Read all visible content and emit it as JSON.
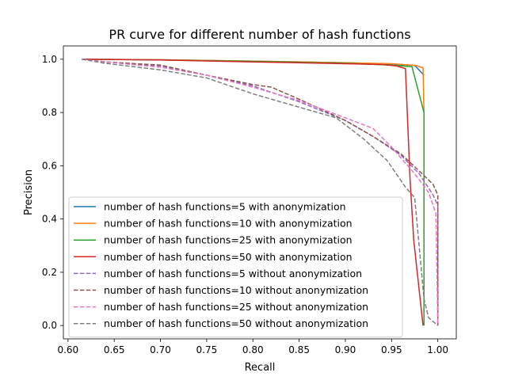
{
  "chart_data": {
    "type": "line",
    "title": "PR curve for different number of hash functions",
    "xlabel": "Recall",
    "ylabel": "Precision",
    "xlim": [
      0.595,
      1.02
    ],
    "ylim": [
      -0.05,
      1.05
    ],
    "xticks": [
      "0.60",
      "0.65",
      "0.70",
      "0.75",
      "0.80",
      "0.85",
      "0.90",
      "0.95",
      "1.00"
    ],
    "yticks": [
      "0.0",
      "0.2",
      "0.4",
      "0.6",
      "0.8",
      "1.0"
    ],
    "grid": false,
    "legend_position": "lower-left",
    "series": [
      {
        "name": "number of hash functions=5 with anonymization",
        "color": "#1f77b4",
        "dash": "solid",
        "points": [
          [
            0.615,
            1.0
          ],
          [
            0.7,
            0.998
          ],
          [
            0.8,
            0.993
          ],
          [
            0.9,
            0.987
          ],
          [
            0.95,
            0.982
          ],
          [
            0.975,
            0.977
          ],
          [
            0.985,
            0.94
          ]
        ]
      },
      {
        "name": "number of hash functions=10 with anonymization",
        "color": "#ff7f0e",
        "dash": "solid",
        "points": [
          [
            0.615,
            1.0
          ],
          [
            0.7,
            0.998
          ],
          [
            0.8,
            0.993
          ],
          [
            0.9,
            0.987
          ],
          [
            0.95,
            0.983
          ],
          [
            0.976,
            0.977
          ],
          [
            0.984,
            0.968
          ],
          [
            0.985,
            0.8
          ]
        ]
      },
      {
        "name": "number of hash functions=25 with anonymization",
        "color": "#2ca02c",
        "dash": "solid",
        "points": [
          [
            0.615,
            1.0
          ],
          [
            0.7,
            0.997
          ],
          [
            0.8,
            0.992
          ],
          [
            0.9,
            0.985
          ],
          [
            0.95,
            0.978
          ],
          [
            0.972,
            0.972
          ],
          [
            0.985,
            0.8
          ],
          [
            0.985,
            0.0
          ]
        ]
      },
      {
        "name": "number of hash functions=50 with anonymization",
        "color": "#d62728",
        "dash": "solid",
        "points": [
          [
            0.615,
            1.0
          ],
          [
            0.7,
            0.997
          ],
          [
            0.8,
            0.99
          ],
          [
            0.9,
            0.983
          ],
          [
            0.94,
            0.98
          ],
          [
            0.955,
            0.975
          ],
          [
            0.965,
            0.965
          ],
          [
            0.97,
            0.55
          ],
          [
            0.974,
            0.32
          ],
          [
            0.984,
            0.0
          ]
        ]
      },
      {
        "name": "number of hash functions=5 without anonymization",
        "color": "#9467bd",
        "dash": "dashed",
        "points": [
          [
            0.615,
            1.0
          ],
          [
            0.64,
            0.99
          ],
          [
            0.7,
            0.975
          ],
          [
            0.75,
            0.94
          ],
          [
            0.8,
            0.9
          ],
          [
            0.85,
            0.84
          ],
          [
            0.9,
            0.77
          ],
          [
            0.93,
            0.71
          ],
          [
            0.96,
            0.64
          ],
          [
            0.98,
            0.57
          ],
          [
            0.995,
            0.49
          ],
          [
            1.0,
            0.45
          ],
          [
            1.0,
            0.0
          ]
        ]
      },
      {
        "name": "number of hash functions=10 without anonymization",
        "color": "#8c564b",
        "dash": "dashed",
        "points": [
          [
            0.615,
            1.0
          ],
          [
            0.64,
            0.99
          ],
          [
            0.7,
            0.978
          ],
          [
            0.75,
            0.94
          ],
          [
            0.8,
            0.905
          ],
          [
            0.82,
            0.895
          ],
          [
            0.85,
            0.85
          ],
          [
            0.9,
            0.77
          ],
          [
            0.93,
            0.71
          ],
          [
            0.96,
            0.645
          ],
          [
            0.98,
            0.58
          ],
          [
            0.995,
            0.53
          ],
          [
            1.0,
            0.49
          ],
          [
            1.0,
            0.0
          ]
        ]
      },
      {
        "name": "number of hash functions=25 without anonymization",
        "color": "#e377c2",
        "dash": "dashed",
        "points": [
          [
            0.615,
            1.0
          ],
          [
            0.64,
            0.99
          ],
          [
            0.7,
            0.97
          ],
          [
            0.75,
            0.94
          ],
          [
            0.8,
            0.895
          ],
          [
            0.85,
            0.845
          ],
          [
            0.9,
            0.78
          ],
          [
            0.93,
            0.74
          ],
          [
            0.95,
            0.67
          ],
          [
            0.975,
            0.57
          ],
          [
            0.99,
            0.5
          ],
          [
            0.998,
            0.42
          ],
          [
            1.0,
            0.0
          ]
        ]
      },
      {
        "name": "number of hash functions=50 without anonymization",
        "color": "#7f7f7f",
        "dash": "dashed",
        "points": [
          [
            0.615,
            1.0
          ],
          [
            0.64,
            0.985
          ],
          [
            0.7,
            0.96
          ],
          [
            0.75,
            0.93
          ],
          [
            0.8,
            0.87
          ],
          [
            0.85,
            0.82
          ],
          [
            0.89,
            0.78
          ],
          [
            0.92,
            0.7
          ],
          [
            0.945,
            0.62
          ],
          [
            0.965,
            0.52
          ],
          [
            0.975,
            0.48
          ],
          [
            0.985,
            0.1
          ],
          [
            0.99,
            0.03
          ],
          [
            1.0,
            0.0
          ]
        ]
      }
    ]
  }
}
